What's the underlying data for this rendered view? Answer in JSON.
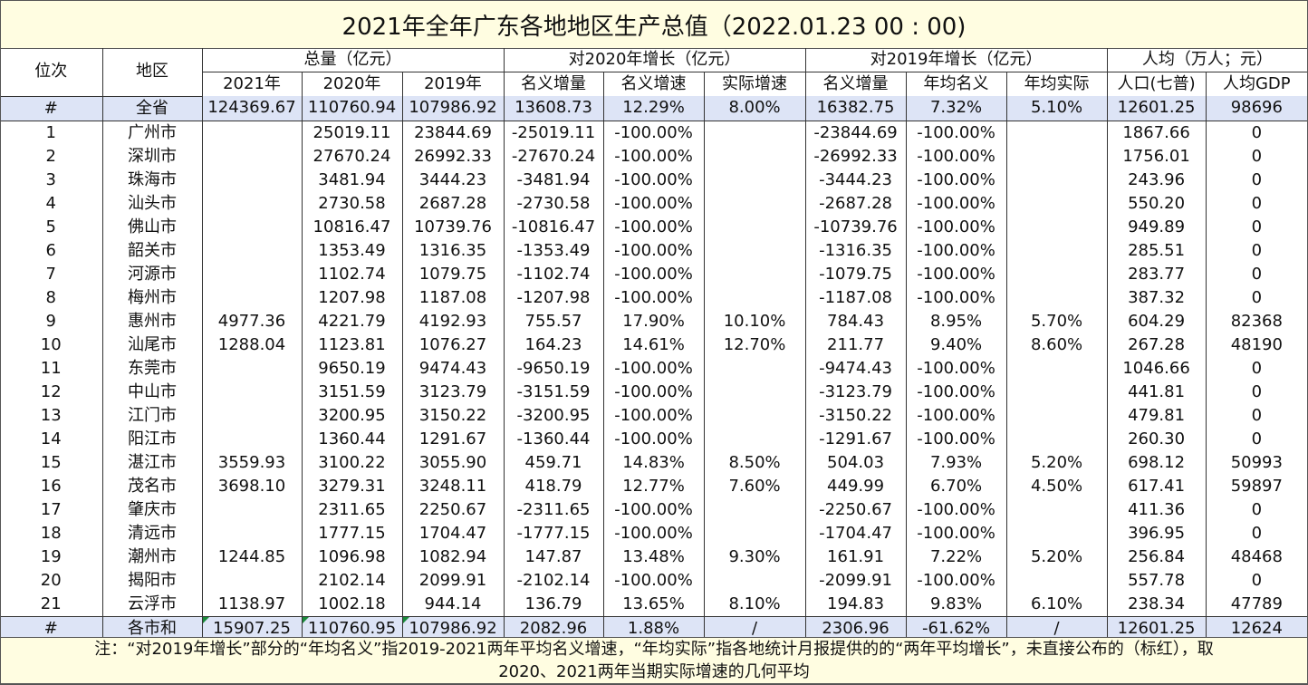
{
  "title": "2021年全年广东各地地区生产总值（2022.01.23 00 : 00)",
  "headers": {
    "rank": "位次",
    "region": "地区",
    "total_group": "总量（亿元）",
    "g2020_group": "对2020年增长（亿元）",
    "g2019_group": "对2019年增长（亿元）",
    "percap_group": "人均（万人；元）",
    "y2021": "2021年",
    "y2020": "2020年",
    "y2019": "2019年",
    "nom_inc": "名义增量",
    "nom_rate": "名义增速",
    "real_rate": "实际增速",
    "nom_inc2": "名义增量",
    "avg_nom": "年均名义",
    "avg_real": "年均实际",
    "pop": "人口(七普)",
    "gdp_pc": "人均GDP"
  },
  "rows": [
    [
      "#",
      "全省",
      "124369.67",
      "110760.94",
      "107986.92",
      "13608.73",
      "12.29%",
      "8.00%",
      "16382.75",
      "7.32%",
      "5.10%",
      "12601.25",
      "98696"
    ],
    [
      "1",
      "广州市",
      "",
      "25019.11",
      "23844.69",
      "-25019.11",
      "-100.00%",
      "",
      "-23844.69",
      "-100.00%",
      "",
      "1867.66",
      "0"
    ],
    [
      "2",
      "深圳市",
      "",
      "27670.24",
      "26992.33",
      "-27670.24",
      "-100.00%",
      "",
      "-26992.33",
      "-100.00%",
      "",
      "1756.01",
      "0"
    ],
    [
      "3",
      "珠海市",
      "",
      "3481.94",
      "3444.23",
      "-3481.94",
      "-100.00%",
      "",
      "-3444.23",
      "-100.00%",
      "",
      "243.96",
      "0"
    ],
    [
      "4",
      "汕头市",
      "",
      "2730.58",
      "2687.28",
      "-2730.58",
      "-100.00%",
      "",
      "-2687.28",
      "-100.00%",
      "",
      "550.20",
      "0"
    ],
    [
      "5",
      "佛山市",
      "",
      "10816.47",
      "10739.76",
      "-10816.47",
      "-100.00%",
      "",
      "-10739.76",
      "-100.00%",
      "",
      "949.89",
      "0"
    ],
    [
      "6",
      "韶关市",
      "",
      "1353.49",
      "1316.35",
      "-1353.49",
      "-100.00%",
      "",
      "-1316.35",
      "-100.00%",
      "",
      "285.51",
      "0"
    ],
    [
      "7",
      "河源市",
      "",
      "1102.74",
      "1079.75",
      "-1102.74",
      "-100.00%",
      "",
      "-1079.75",
      "-100.00%",
      "",
      "283.77",
      "0"
    ],
    [
      "8",
      "梅州市",
      "",
      "1207.98",
      "1187.08",
      "-1207.98",
      "-100.00%",
      "",
      "-1187.08",
      "-100.00%",
      "",
      "387.32",
      "0"
    ],
    [
      "9",
      "惠州市",
      "4977.36",
      "4221.79",
      "4192.93",
      "755.57",
      "17.90%",
      "10.10%",
      "784.43",
      "8.95%",
      "5.70%",
      "604.29",
      "82368"
    ],
    [
      "10",
      "汕尾市",
      "1288.04",
      "1123.81",
      "1076.27",
      "164.23",
      "14.61%",
      "12.70%",
      "211.77",
      "9.40%",
      "8.60%",
      "267.28",
      "48190"
    ],
    [
      "11",
      "东莞市",
      "",
      "9650.19",
      "9474.43",
      "-9650.19",
      "-100.00%",
      "",
      "-9474.43",
      "-100.00%",
      "",
      "1046.66",
      "0"
    ],
    [
      "12",
      "中山市",
      "",
      "3151.59",
      "3123.79",
      "-3151.59",
      "-100.00%",
      "",
      "-3123.79",
      "-100.00%",
      "",
      "441.81",
      "0"
    ],
    [
      "13",
      "江门市",
      "",
      "3200.95",
      "3150.22",
      "-3200.95",
      "-100.00%",
      "",
      "-3150.22",
      "-100.00%",
      "",
      "479.81",
      "0"
    ],
    [
      "14",
      "阳江市",
      "",
      "1360.44",
      "1291.67",
      "-1360.44",
      "-100.00%",
      "",
      "-1291.67",
      "-100.00%",
      "",
      "260.30",
      "0"
    ],
    [
      "15",
      "湛江市",
      "3559.93",
      "3100.22",
      "3055.90",
      "459.71",
      "14.83%",
      "8.50%",
      "504.03",
      "7.93%",
      "5.20%",
      "698.12",
      "50993"
    ],
    [
      "16",
      "茂名市",
      "3698.10",
      "3279.31",
      "3248.11",
      "418.79",
      "12.77%",
      "7.60%",
      "449.99",
      "6.70%",
      "4.50%",
      "617.41",
      "59897"
    ],
    [
      "17",
      "肇庆市",
      "",
      "2311.65",
      "2250.67",
      "-2311.65",
      "-100.00%",
      "",
      "-2250.67",
      "-100.00%",
      "",
      "411.36",
      "0"
    ],
    [
      "18",
      "清远市",
      "",
      "1777.15",
      "1704.47",
      "-1777.15",
      "-100.00%",
      "",
      "-1704.47",
      "-100.00%",
      "",
      "396.95",
      "0"
    ],
    [
      "19",
      "潮州市",
      "1244.85",
      "1096.98",
      "1082.94",
      "147.87",
      "13.48%",
      "9.30%",
      "161.91",
      "7.22%",
      "5.20%",
      "256.84",
      "48468"
    ],
    [
      "20",
      "揭阳市",
      "",
      "2102.14",
      "2099.91",
      "-2102.14",
      "-100.00%",
      "",
      "-2099.91",
      "-100.00%",
      "",
      "557.78",
      "0"
    ],
    [
      "21",
      "云浮市",
      "1138.97",
      "1002.18",
      "944.14",
      "136.79",
      "13.65%",
      "8.10%",
      "194.83",
      "9.83%",
      "6.10%",
      "238.34",
      "47789"
    ],
    [
      "#",
      "各市和",
      "15907.25",
      "110760.95",
      "107986.92",
      "2082.96",
      "1.88%",
      "/",
      "2306.96",
      "-61.62%",
      "/",
      "12601.25",
      "12624"
    ]
  ],
  "note": {
    "line1": "注：“对2019年增长”部分的“年均名义”指2019-2021两年平均名义增速，“年均实际”指各地统计月报提供的的“两年平均增长”，未直接公布的（标红），取",
    "line2": "2020、2021两年当期实际增速的几何平均"
  }
}
